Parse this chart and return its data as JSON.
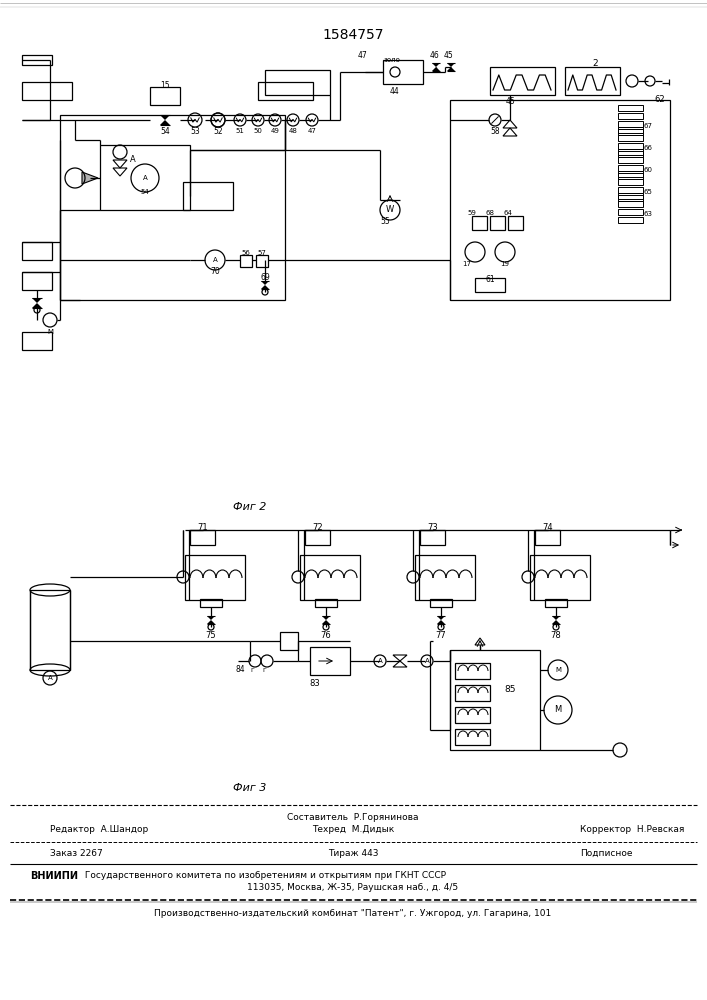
{
  "patent_number": "1584757",
  "fig2_label": "Фиг 2",
  "fig3_label": "Фиг 3",
  "editor_line": "Редактор  А.Шандор",
  "composer_line1": "Составитель  Р.Горянинова",
  "techred_line": "Техред  М.Дидык",
  "corrector_line": "Корректор  Н.Ревская",
  "order_line": "Заказ 2267",
  "tirazh_line": "Тираж 443",
  "podpisnoe_line": "Подписное",
  "vniipи_bold": "ВНИИПИ",
  "vniipи_rest": " Государственного комитета по изобретениям и открытиям при ГКНТ СССР",
  "address_line": "113035, Москва, Ж-35, Раушская наб., д. 4/5",
  "publisher_line": "Производственно-издательский комбинат \"Патент\", г. Ужгород, ул. Гагарина, 101",
  "bg_color": "#ffffff"
}
